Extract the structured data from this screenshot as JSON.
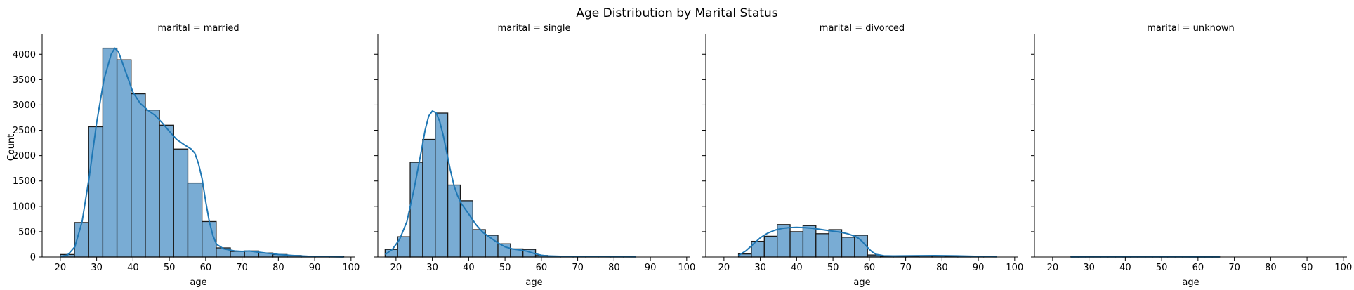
{
  "title": "Age Distribution by Marital Status",
  "chart_data": {
    "type": "histogram",
    "title": "Age Distribution by Marital Status",
    "ylabel": "Count",
    "ylim": [
      0,
      4350
    ],
    "yticks": [
      0,
      500,
      1000,
      1500,
      2000,
      2500,
      3000,
      3500,
      4000
    ],
    "xlim": [
      15,
      101
    ],
    "xticks": [
      20,
      30,
      40,
      50,
      60,
      70,
      80,
      90,
      100
    ],
    "bar_color": "#79acd4",
    "edge_color": "#1a1a1a",
    "kde_color": "#1f77b4",
    "panels": [
      {
        "label": "marital = married",
        "xlabel": "age",
        "bin_edges": [
          20,
          23.9,
          27.8,
          31.7,
          35.6,
          39.5,
          43.4,
          47.3,
          51.2,
          55.1,
          59.0,
          62.9,
          66.8,
          70.7,
          74.6,
          78.5,
          82.4,
          86.3,
          90.2,
          94.1,
          98.0
        ],
        "counts": [
          50,
          680,
          2570,
          4120,
          3890,
          3220,
          2900,
          2600,
          2130,
          1460,
          700,
          180,
          110,
          120,
          80,
          50,
          30,
          15,
          8,
          5
        ],
        "kde": [
          [
            20,
            5
          ],
          [
            22,
            40
          ],
          [
            24,
            200
          ],
          [
            26,
            700
          ],
          [
            28,
            1600
          ],
          [
            30,
            2650
          ],
          [
            32,
            3500
          ],
          [
            34,
            4000
          ],
          [
            35,
            4120
          ],
          [
            36,
            4050
          ],
          [
            38,
            3650
          ],
          [
            40,
            3250
          ],
          [
            42,
            3030
          ],
          [
            44,
            2900
          ],
          [
            46,
            2800
          ],
          [
            48,
            2650
          ],
          [
            50,
            2480
          ],
          [
            52,
            2320
          ],
          [
            54,
            2220
          ],
          [
            56,
            2130
          ],
          [
            57,
            2050
          ],
          [
            58,
            1850
          ],
          [
            59,
            1550
          ],
          [
            60,
            1100
          ],
          [
            61,
            700
          ],
          [
            62,
            420
          ],
          [
            63,
            250
          ],
          [
            65,
            160
          ],
          [
            68,
            120
          ],
          [
            70,
            110
          ],
          [
            72,
            120
          ],
          [
            74,
            100
          ],
          [
            77,
            75
          ],
          [
            80,
            50
          ],
          [
            84,
            30
          ],
          [
            88,
            15
          ],
          [
            92,
            8
          ],
          [
            98,
            2
          ]
        ]
      },
      {
        "label": "marital = single",
        "xlabel": "age",
        "bin_edges": [
          17,
          20.45,
          23.9,
          27.35,
          30.8,
          34.25,
          37.7,
          41.15,
          44.6,
          48.05,
          51.5,
          54.95,
          58.4,
          61.85,
          65.3,
          68.75,
          72.2,
          75.65,
          79.1,
          82.55,
          86.0
        ],
        "counts": [
          150,
          400,
          1870,
          2320,
          2840,
          1420,
          1110,
          540,
          430,
          260,
          160,
          150,
          30,
          15,
          10,
          8,
          5,
          5,
          3,
          3
        ],
        "kde": [
          [
            17,
            50
          ],
          [
            19,
            150
          ],
          [
            21,
            350
          ],
          [
            23,
            700
          ],
          [
            25,
            1350
          ],
          [
            27,
            2100
          ],
          [
            28,
            2500
          ],
          [
            29,
            2780
          ],
          [
            30,
            2880
          ],
          [
            31,
            2850
          ],
          [
            32,
            2680
          ],
          [
            33,
            2400
          ],
          [
            34,
            2050
          ],
          [
            35,
            1700
          ],
          [
            36,
            1400
          ],
          [
            37,
            1200
          ],
          [
            38,
            1050
          ],
          [
            40,
            850
          ],
          [
            42,
            640
          ],
          [
            44,
            480
          ],
          [
            46,
            380
          ],
          [
            48,
            280
          ],
          [
            50,
            200
          ],
          [
            52,
            160
          ],
          [
            54,
            140
          ],
          [
            56,
            115
          ],
          [
            58,
            70
          ],
          [
            60,
            35
          ],
          [
            62,
            20
          ],
          [
            66,
            12
          ],
          [
            72,
            10
          ],
          [
            80,
            6
          ],
          [
            86,
            3
          ]
        ]
      },
      {
        "label": "marital = divorced",
        "xlabel": "age",
        "bin_edges": [
          24,
          27.55,
          31.1,
          34.65,
          38.2,
          41.75,
          45.3,
          48.85,
          52.4,
          55.95,
          59.5,
          63.05,
          66.6,
          70.15,
          73.7,
          77.25,
          80.8,
          84.35,
          87.9,
          91.45,
          95.0
        ],
        "counts": [
          60,
          310,
          410,
          640,
          500,
          620,
          460,
          540,
          390,
          430,
          40,
          15,
          12,
          18,
          22,
          22,
          18,
          12,
          8,
          5
        ],
        "kde": [
          [
            24,
            30
          ],
          [
            26,
            120
          ],
          [
            28,
            250
          ],
          [
            30,
            380
          ],
          [
            32,
            470
          ],
          [
            34,
            530
          ],
          [
            36,
            565
          ],
          [
            38,
            580
          ],
          [
            40,
            585
          ],
          [
            42,
            580
          ],
          [
            44,
            570
          ],
          [
            46,
            550
          ],
          [
            48,
            530
          ],
          [
            50,
            510
          ],
          [
            52,
            490
          ],
          [
            54,
            460
          ],
          [
            56,
            410
          ],
          [
            57,
            370
          ],
          [
            58,
            310
          ],
          [
            59,
            230
          ],
          [
            60,
            150
          ],
          [
            61,
            90
          ],
          [
            62,
            50
          ],
          [
            64,
            25
          ],
          [
            67,
            20
          ],
          [
            72,
            25
          ],
          [
            78,
            28
          ],
          [
            84,
            22
          ],
          [
            90,
            12
          ],
          [
            95,
            5
          ]
        ]
      },
      {
        "label": "marital = unknown",
        "xlabel": "age",
        "bin_edges": [
          25,
          27.05,
          29.1,
          31.15,
          33.2,
          35.25,
          37.3,
          39.35,
          41.4,
          43.45,
          45.5,
          47.55,
          49.6,
          51.65,
          53.7,
          55.75,
          57.8,
          59.85,
          61.9,
          63.95,
          66.0
        ],
        "counts": [
          2,
          3,
          4,
          5,
          5,
          6,
          5,
          5,
          6,
          4,
          5,
          4,
          4,
          3,
          3,
          3,
          2,
          2,
          2,
          1
        ],
        "kde": [
          [
            25,
            1
          ],
          [
            30,
            3
          ],
          [
            35,
            4
          ],
          [
            40,
            4
          ],
          [
            45,
            4
          ],
          [
            50,
            3
          ],
          [
            55,
            3
          ],
          [
            60,
            2
          ],
          [
            66,
            1
          ]
        ]
      }
    ]
  }
}
